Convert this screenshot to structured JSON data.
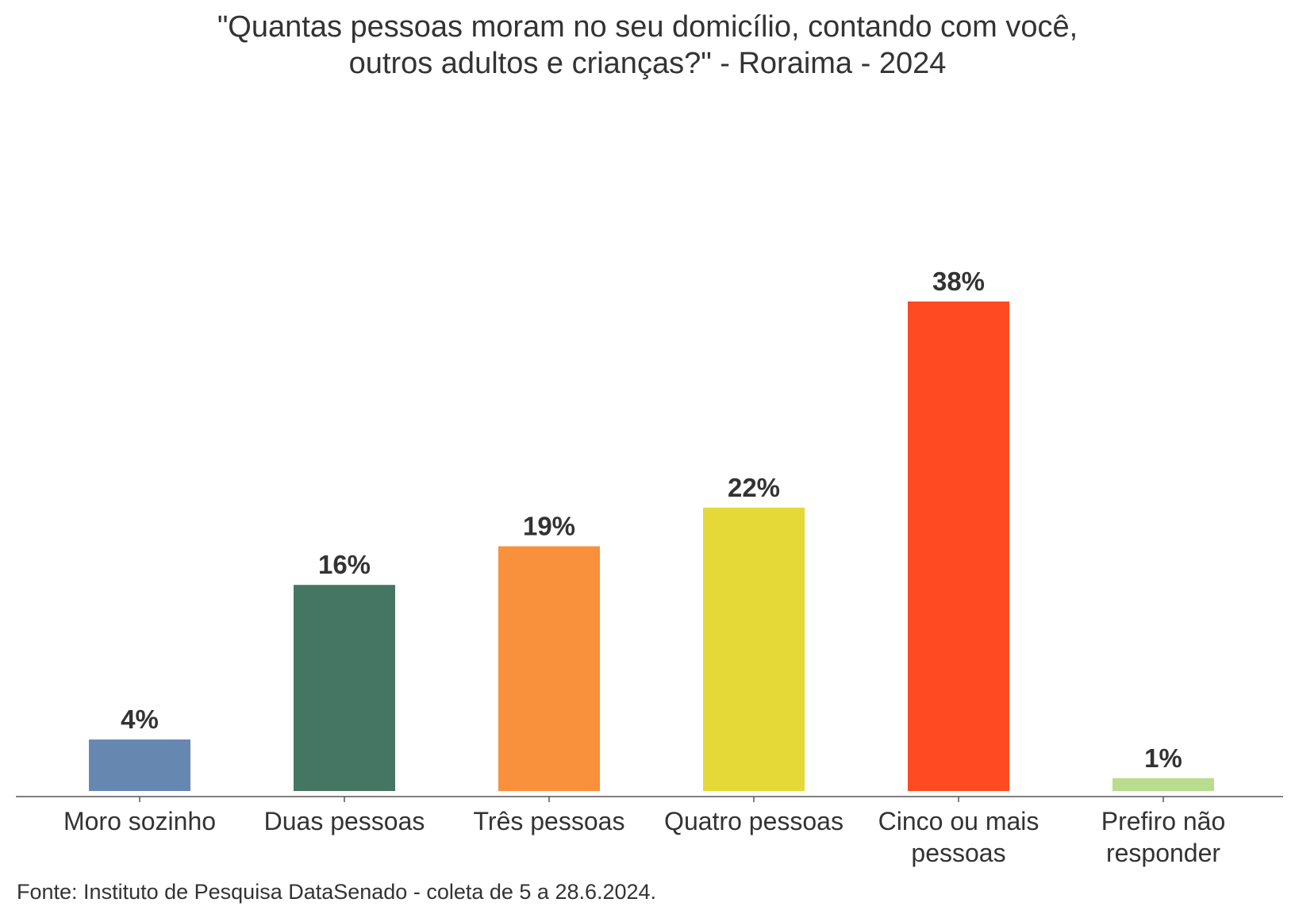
{
  "chart_data": {
    "type": "bar",
    "title_lines": [
      "\"Quantas pessoas moram no seu domicílio, contando com você,",
      "outros adultos e crianças?\" - Roraima - 2024"
    ],
    "categories": [
      [
        "Moro sozinho"
      ],
      [
        "Duas pessoas"
      ],
      [
        "Três pessoas"
      ],
      [
        "Quatro pessoas"
      ],
      [
        "Cinco ou mais",
        "pessoas"
      ],
      [
        "Prefiro não",
        "responder"
      ]
    ],
    "values": [
      4,
      16,
      19,
      22,
      38,
      1
    ],
    "value_labels": [
      "4%",
      "16%",
      "19%",
      "22%",
      "38%",
      "1%"
    ],
    "colors": [
      "#6688B0",
      "#457563",
      "#F9903C",
      "#E4D936",
      "#FF4A22",
      "#BADC8E"
    ],
    "ylim": [
      0,
      38
    ],
    "grid": false,
    "source": "Fonte: Instituto de Pesquisa DataSenado - coleta de 5 a 28.6.2024."
  }
}
